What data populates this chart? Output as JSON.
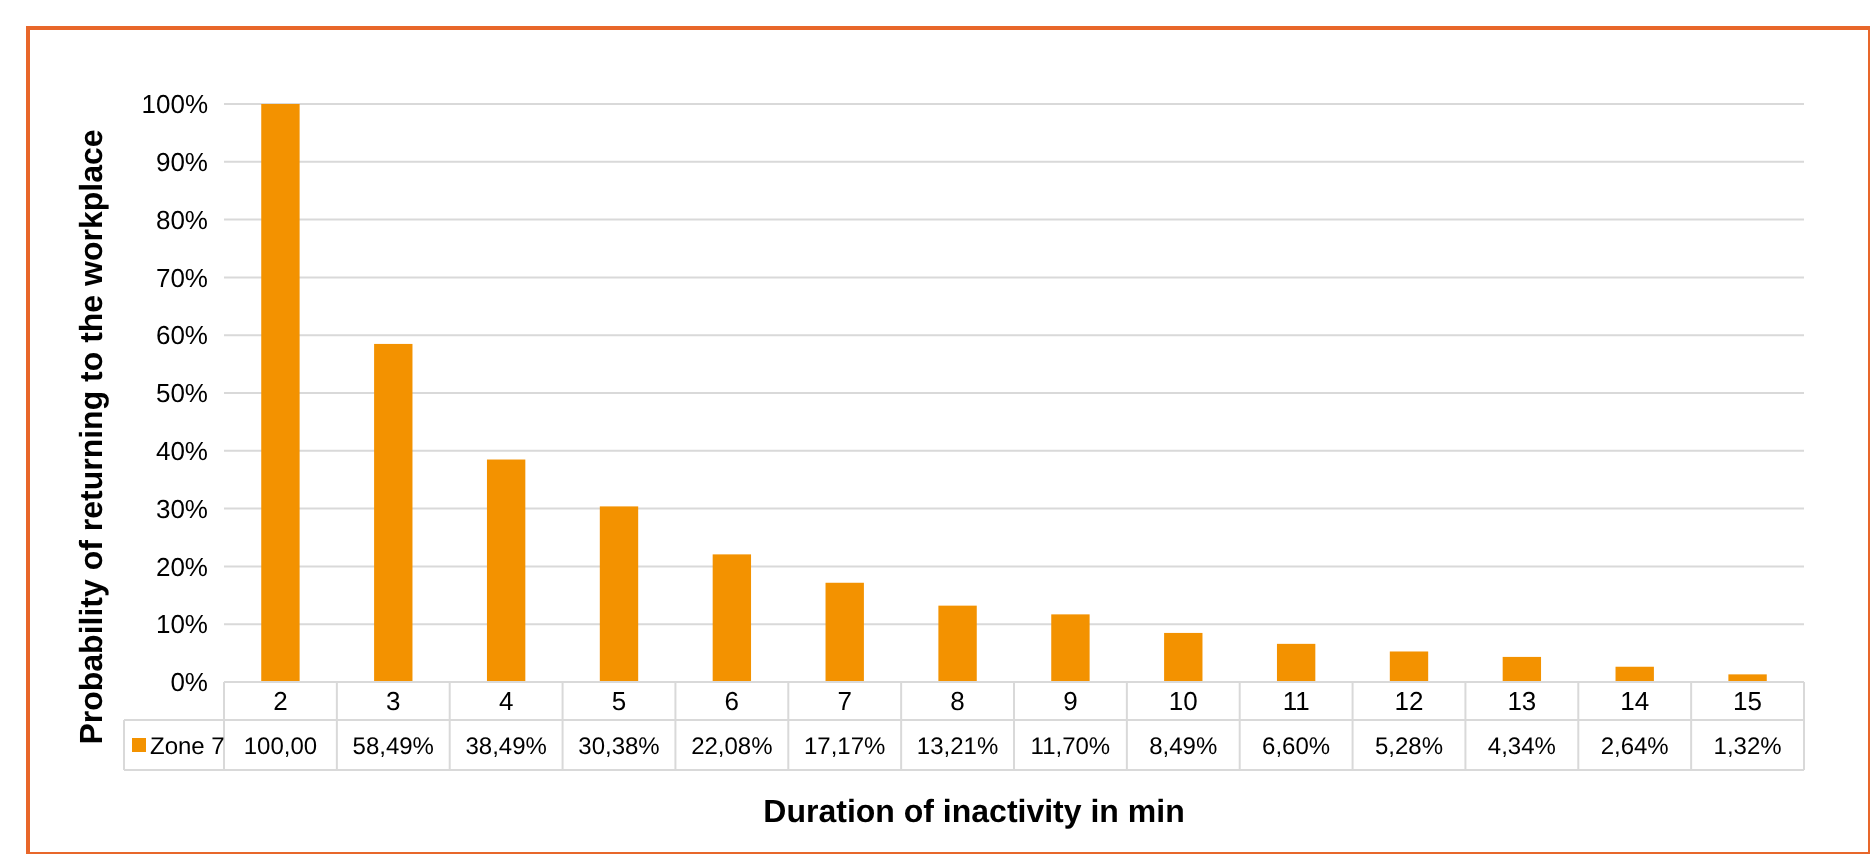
{
  "chart_data": {
    "type": "bar",
    "xlabel": "Duration of inactivity in min",
    "ylabel": "Probability of returning to the workplace",
    "categories": [
      "2",
      "3",
      "4",
      "5",
      "6",
      "7",
      "8",
      "9",
      "10",
      "11",
      "12",
      "13",
      "14",
      "15"
    ],
    "series": [
      {
        "name": "Zone 7",
        "color": "#f39200",
        "values": [
          100,
          58.49,
          38.49,
          30.38,
          22.08,
          17.17,
          13.21,
          11.7,
          8.49,
          6.6,
          5.28,
          4.34,
          2.64,
          1.32
        ],
        "value_labels": [
          "100,00",
          "58,49%",
          "38,49%",
          "30,38%",
          "22,08%",
          "17,17%",
          "13,21%",
          "11,70%",
          "8,49%",
          "6,60%",
          "5,28%",
          "4,34%",
          "2,64%",
          "1,32%"
        ]
      }
    ],
    "ylim": [
      0,
      100
    ],
    "yticks": [
      {
        "value": 0,
        "label": "0%"
      },
      {
        "value": 10,
        "label": "10%"
      },
      {
        "value": 20,
        "label": "20%"
      },
      {
        "value": 30,
        "label": "30%"
      },
      {
        "value": 40,
        "label": "40%"
      },
      {
        "value": 50,
        "label": "50%"
      },
      {
        "value": 60,
        "label": "60%"
      },
      {
        "value": 70,
        "label": "70%"
      },
      {
        "value": 80,
        "label": "80%"
      },
      {
        "value": 90,
        "label": "90%"
      },
      {
        "value": 100,
        "label": "100%"
      }
    ],
    "grid": "y",
    "legend": "bottom left"
  }
}
